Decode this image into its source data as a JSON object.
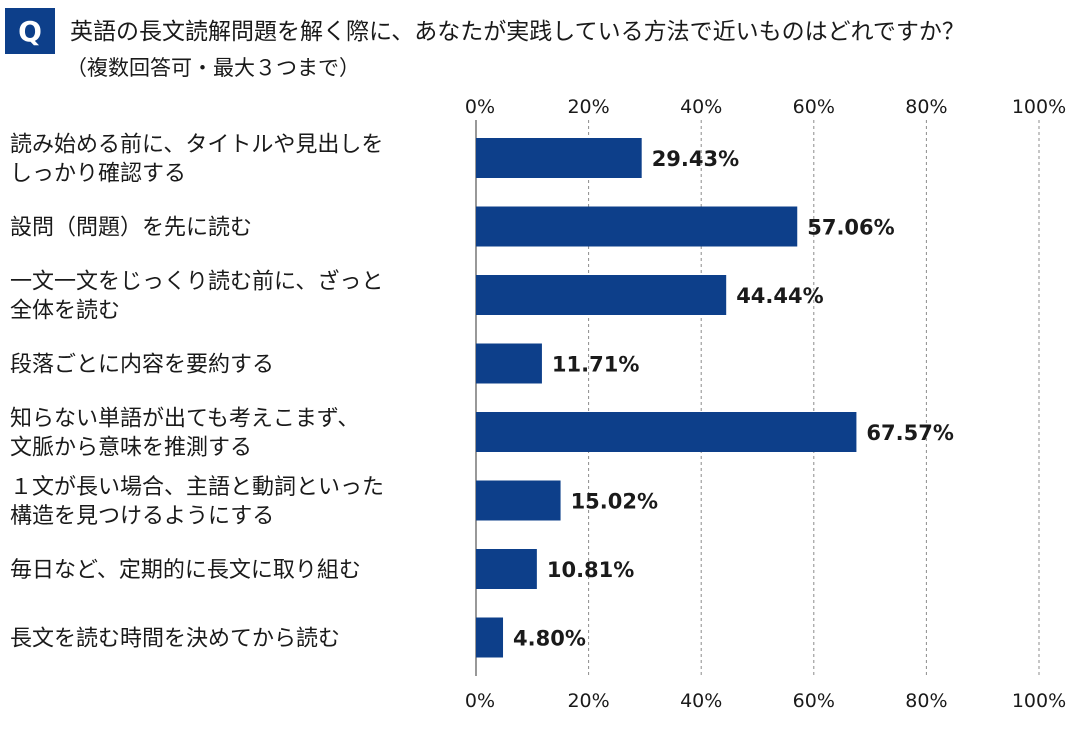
{
  "question": {
    "badge": "Q",
    "title": "英語の長文読解問題を解く際に、あなたが実践している方法で近いものはどれですか？",
    "subtitle": "（複数回答可・最大３つまで）"
  },
  "colors": {
    "bar": "#0d3f8a",
    "grid": "#8c8c8c"
  },
  "chart_data": {
    "type": "bar",
    "orientation": "horizontal",
    "xlim": [
      0,
      100
    ],
    "grid": true,
    "tick_labels": [
      "0%",
      "20%",
      "40%",
      "60%",
      "80%",
      "100%"
    ],
    "tick_values": [
      0,
      20,
      40,
      60,
      80,
      100
    ],
    "categories": [
      [
        "読み始める前に、タイトルや見出しを",
        "しっかり確認する"
      ],
      [
        "設問（問題）を先に読む"
      ],
      [
        "一文一文をじっくり読む前に、ざっと",
        "全体を読む"
      ],
      [
        "段落ごとに内容を要約する"
      ],
      [
        "知らない単語が出ても考えこまず、",
        "文脈から意味を推測する"
      ],
      [
        "１文が長い場合、主語と動詞といった",
        "構造を見つけるようにする"
      ],
      [
        "毎日など、定期的に長文に取り組む"
      ],
      [
        "長文を読む時間を決めてから読む"
      ]
    ],
    "values": [
      29.43,
      57.06,
      44.44,
      11.71,
      67.57,
      15.02,
      10.81,
      4.8
    ],
    "value_labels": [
      "29.43%",
      "57.06%",
      "44.44%",
      "11.71%",
      "67.57%",
      "15.02%",
      "10.81%",
      "4.80%"
    ]
  }
}
